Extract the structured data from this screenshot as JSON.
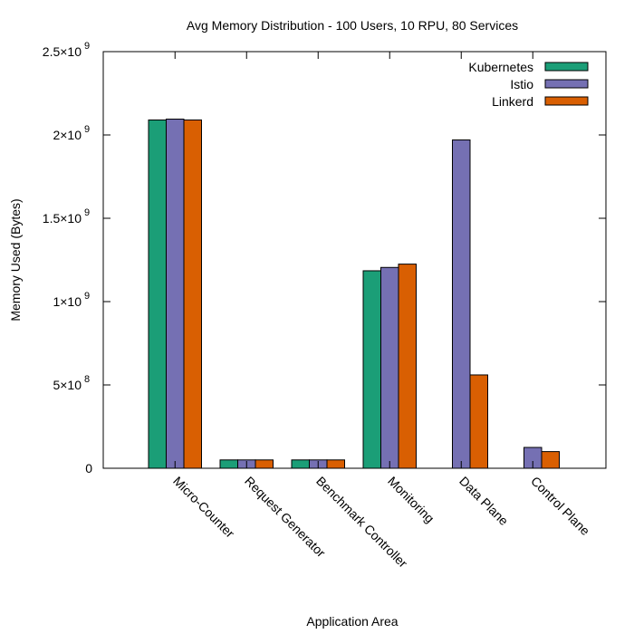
{
  "chart_data": {
    "type": "bar",
    "title": "Avg Memory Distribution - 100 Users, 10 RPU, 80 Services",
    "xlabel": "Application Area",
    "ylabel": "Memory Used (Bytes)",
    "ylim": [
      0,
      2500000000
    ],
    "yticks": [
      {
        "value": 0,
        "label": "0",
        "exp": ""
      },
      {
        "value": 500000000,
        "label": "5×10",
        "exp": "8"
      },
      {
        "value": 1000000000,
        "label": "1×10",
        "exp": "9"
      },
      {
        "value": 1500000000,
        "label": "1.5×10",
        "exp": "9"
      },
      {
        "value": 2000000000,
        "label": "2×10",
        "exp": "9"
      },
      {
        "value": 2500000000,
        "label": "2.5×10",
        "exp": "9"
      }
    ],
    "categories": [
      "Micro-Counter",
      "Request Generator",
      "Benchmark Controller",
      "Monitoring",
      "Data Plane",
      "Control Plane"
    ],
    "series": [
      {
        "name": "Kubernetes",
        "color": "#1b9e77",
        "values": [
          2090000000,
          50000000,
          50000000,
          1185000000,
          0,
          0
        ]
      },
      {
        "name": "Istio",
        "color": "#7570b3",
        "values": [
          2095000000,
          50000000,
          50000000,
          1205000000,
          1970000000,
          125000000
        ]
      },
      {
        "name": "Linkerd",
        "color": "#d95f02",
        "values": [
          2090000000,
          50000000,
          50000000,
          1225000000,
          560000000,
          100000000
        ]
      }
    ],
    "legend_position": "top-right",
    "grid": false
  }
}
